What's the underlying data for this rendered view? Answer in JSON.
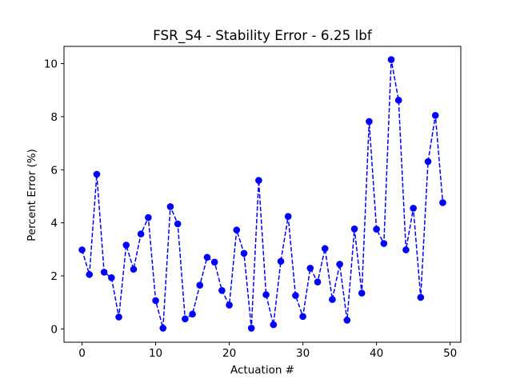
{
  "chart_data": {
    "type": "line",
    "title": "FSR_S4 - Stability Error - 6.25 lbf",
    "xlabel": "Actuation #",
    "ylabel": "Percent Error (%)",
    "xlim": [
      -2.45,
      51.45
    ],
    "ylim": [
      -0.5,
      10.65
    ],
    "xticks": [
      0,
      10,
      20,
      30,
      40,
      50
    ],
    "yticks": [
      0,
      2,
      4,
      6,
      8,
      10
    ],
    "grid": false,
    "series": [
      {
        "color": "#0000ff",
        "line_style": "dashed",
        "marker": "circle",
        "x": [
          0,
          1,
          2,
          3,
          4,
          5,
          6,
          7,
          8,
          9,
          10,
          11,
          12,
          13,
          14,
          15,
          16,
          17,
          18,
          19,
          20,
          21,
          22,
          23,
          24,
          25,
          26,
          27,
          28,
          29,
          30,
          31,
          32,
          33,
          34,
          35,
          36,
          37,
          38,
          39,
          40,
          41,
          42,
          43,
          44,
          45,
          46,
          47,
          48,
          49
        ],
        "y": [
          2.98,
          2.05,
          5.83,
          2.14,
          1.93,
          0.45,
          3.16,
          2.25,
          3.58,
          4.2,
          1.07,
          0.03,
          4.61,
          3.96,
          0.38,
          0.56,
          1.65,
          2.7,
          2.52,
          1.45,
          0.9,
          3.73,
          2.85,
          0.03,
          5.6,
          1.29,
          0.16,
          2.55,
          4.24,
          1.26,
          0.47,
          2.29,
          1.77,
          3.03,
          1.11,
          2.44,
          0.33,
          3.77,
          1.35,
          7.82,
          3.76,
          3.22,
          10.15,
          8.62,
          2.98,
          4.55,
          1.19,
          6.31,
          8.05,
          4.76
        ]
      }
    ]
  }
}
